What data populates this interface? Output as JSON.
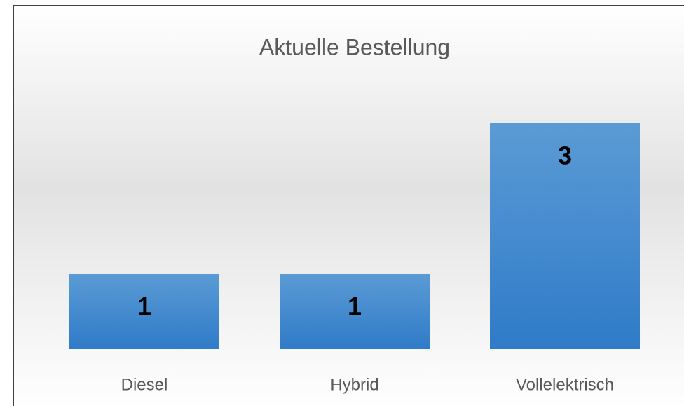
{
  "chart_data": {
    "type": "bar",
    "title": "Aktuelle Bestellung",
    "categories": [
      "Diesel",
      "Hybrid",
      "Vollelektrisch"
    ],
    "values": [
      1,
      1,
      3
    ],
    "color": "#4a8fd6"
  }
}
